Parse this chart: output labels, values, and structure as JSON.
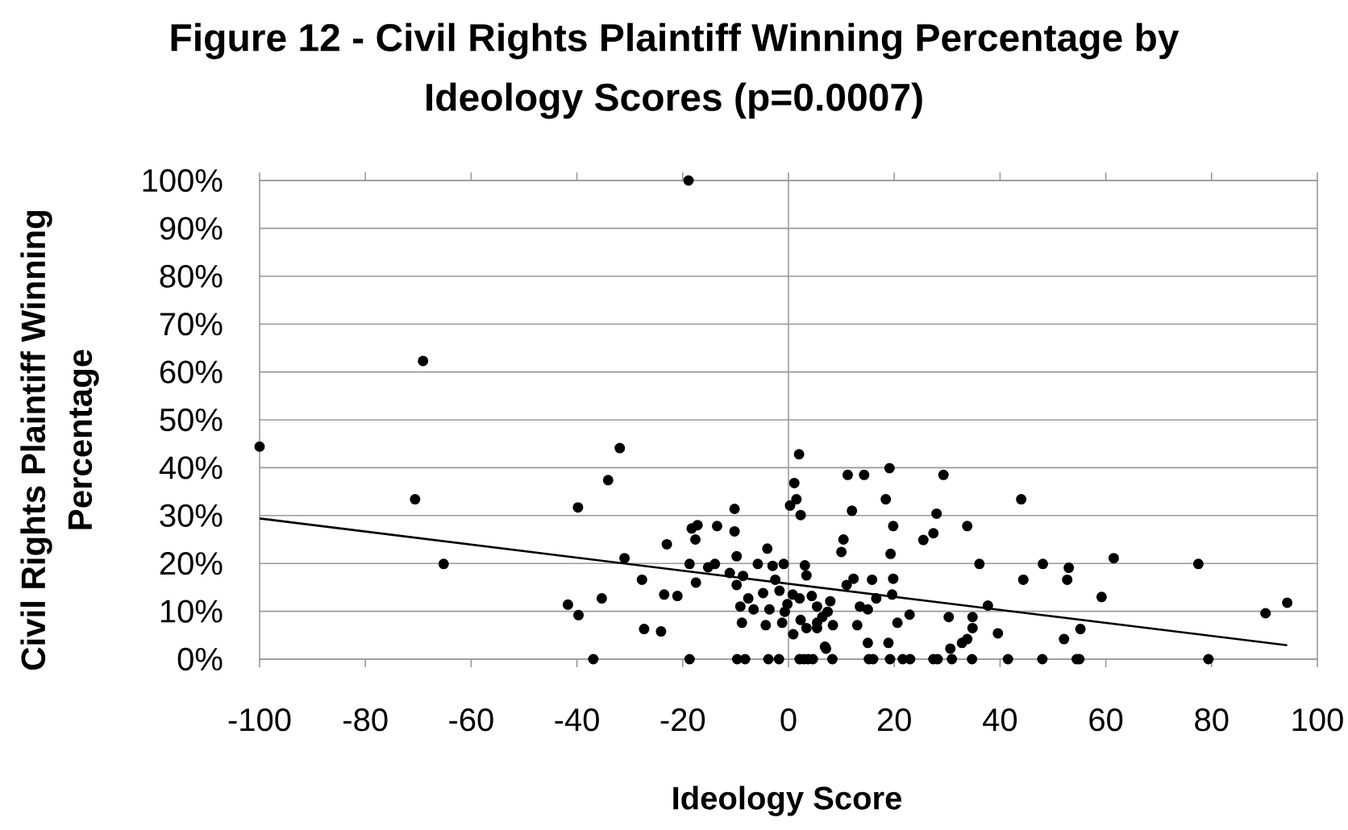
{
  "chart_data": {
    "type": "scatter",
    "title": "Figure 12 - Civil Rights Plaintiff Winning Percentage by Ideology Scores (p=0.0007)",
    "xlabel": "Ideology Score",
    "ylabel": "Civil Rights Plaintiff Winning Percentage",
    "xlim": [
      -100,
      100
    ],
    "ylim": [
      0,
      100
    ],
    "xticks": [
      -100,
      -80,
      -60,
      -40,
      -20,
      0,
      20,
      40,
      60,
      80,
      100
    ],
    "yticks": [
      {
        "value": 0,
        "label": "0%"
      },
      {
        "value": 10,
        "label": "10%"
      },
      {
        "value": 20,
        "label": "20%"
      },
      {
        "value": 30,
        "label": "30%"
      },
      {
        "value": 40,
        "label": "40%"
      },
      {
        "value": 50,
        "label": "50%"
      },
      {
        "value": 60,
        "label": "60%"
      },
      {
        "value": 70,
        "label": "70%"
      },
      {
        "value": 80,
        "label": "80%"
      },
      {
        "value": 90,
        "label": "90%"
      },
      {
        "value": 100,
        "label": "100%"
      }
    ],
    "grid": "y",
    "ref_lines": [
      {
        "axis": "x",
        "value": 0,
        "color": "#999999"
      }
    ],
    "series": [
      {
        "color": "#000000",
        "marker": "circle",
        "x": [
          -100,
          -69.1,
          -70.6,
          -65.2,
          -39.8,
          -41.7,
          -39.7,
          -18.9,
          -31.9,
          -34.1,
          2.0,
          1.1,
          1.5,
          0.3,
          2.3,
          -10.2,
          -18.3,
          -17.2,
          -13.5,
          -10.2,
          -17.6,
          -23.0,
          -9.8,
          -4.0,
          -31.0,
          -18.7,
          -15.2,
          -13.9,
          -11.1,
          -5.8,
          -3.0,
          -0.9,
          3.1,
          -8.6,
          -27.7,
          -17.5,
          -9.8,
          -2.5,
          3.4,
          -23.5,
          -21.0,
          -35.3,
          -7.6,
          -4.8,
          -1.7,
          0.8,
          -9.1,
          -6.6,
          -3.6,
          -0.2,
          2.1,
          5.4,
          7.4,
          -8.8,
          -4.3,
          -1.2,
          2.3,
          5.4,
          -27.3,
          -24.1,
          0.9,
          6.9,
          4.4,
          7.9,
          6.4,
          8.4,
          3.4,
          -0.7,
          19.1,
          11.2,
          14.3,
          29.3,
          18.4,
          44.0,
          12.0,
          28.0,
          19.8,
          33.8,
          27.4,
          25.5,
          10.4,
          10.0,
          19.3,
          36.1,
          48.1,
          44.4,
          12.3,
          15.8,
          19.8,
          11.0,
          19.6,
          37.7,
          16.6,
          13.5,
          15.0,
          22.9,
          30.3,
          34.8,
          20.6,
          13.0,
          34.8,
          39.6,
          33.8,
          32.8,
          30.6,
          15.0,
          18.9,
          7.1,
          52.1,
          5.4,
          53.0,
          52.7,
          61.5,
          77.5,
          59.2,
          90.2,
          94.3,
          55.2,
          -36.9,
          -18.7,
          -9.7,
          -8.2,
          -3.8,
          -1.8,
          2.1,
          2.9,
          3.7,
          4.6,
          8.3,
          15.2,
          16.0,
          19.2,
          21.6,
          23.0,
          27.4,
          28.2,
          30.9,
          34.7,
          41.5,
          48.0,
          54.5,
          55.0,
          79.4
        ],
        "values": [
          44.4,
          62.3,
          33.4,
          19.9,
          31.7,
          11.4,
          9.2,
          100,
          44.1,
          37.4,
          42.8,
          36.8,
          33.4,
          32.1,
          30.1,
          31.4,
          27.3,
          28.0,
          27.8,
          26.7,
          25.0,
          24.0,
          21.5,
          23.1,
          21.1,
          19.9,
          19.2,
          19.9,
          18.0,
          19.9,
          19.5,
          19.9,
          19.6,
          17.4,
          16.6,
          16.0,
          15.5,
          16.6,
          17.5,
          13.5,
          13.2,
          12.7,
          12.7,
          13.8,
          14.3,
          13.5,
          11.0,
          10.4,
          10.4,
          11.5,
          12.7,
          11.0,
          9.9,
          7.6,
          7.1,
          7.6,
          8.2,
          7.6,
          6.3,
          5.8,
          5.2,
          2.6,
          13.2,
          12.1,
          8.8,
          7.1,
          6.5,
          9.9,
          39.9,
          38.5,
          38.5,
          38.5,
          33.4,
          33.4,
          31.0,
          30.4,
          27.8,
          27.8,
          26.3,
          24.9,
          25.0,
          22.4,
          22.0,
          19.9,
          19.9,
          16.6,
          16.8,
          16.6,
          16.8,
          15.5,
          13.5,
          11.2,
          12.7,
          11.0,
          10.4,
          9.3,
          8.8,
          8.8,
          7.6,
          7.1,
          6.5,
          5.4,
          4.2,
          3.4,
          2.2,
          3.4,
          3.4,
          2.2,
          4.2,
          6.5,
          19.1,
          16.6,
          21.1,
          19.9,
          13.0,
          9.6,
          11.8,
          6.3,
          0,
          0,
          0,
          0,
          0,
          0,
          0,
          0,
          0,
          0,
          0,
          0,
          0,
          0,
          0,
          0,
          0,
          0,
          0,
          0,
          0,
          0,
          0,
          0,
          0
        ]
      },
      {
        "type": "line",
        "color": "#000000",
        "marker": "none",
        "line_style": "solid",
        "x": [
          -100,
          94.3
        ],
        "values": [
          29.4,
          2.9
        ]
      }
    ]
  }
}
